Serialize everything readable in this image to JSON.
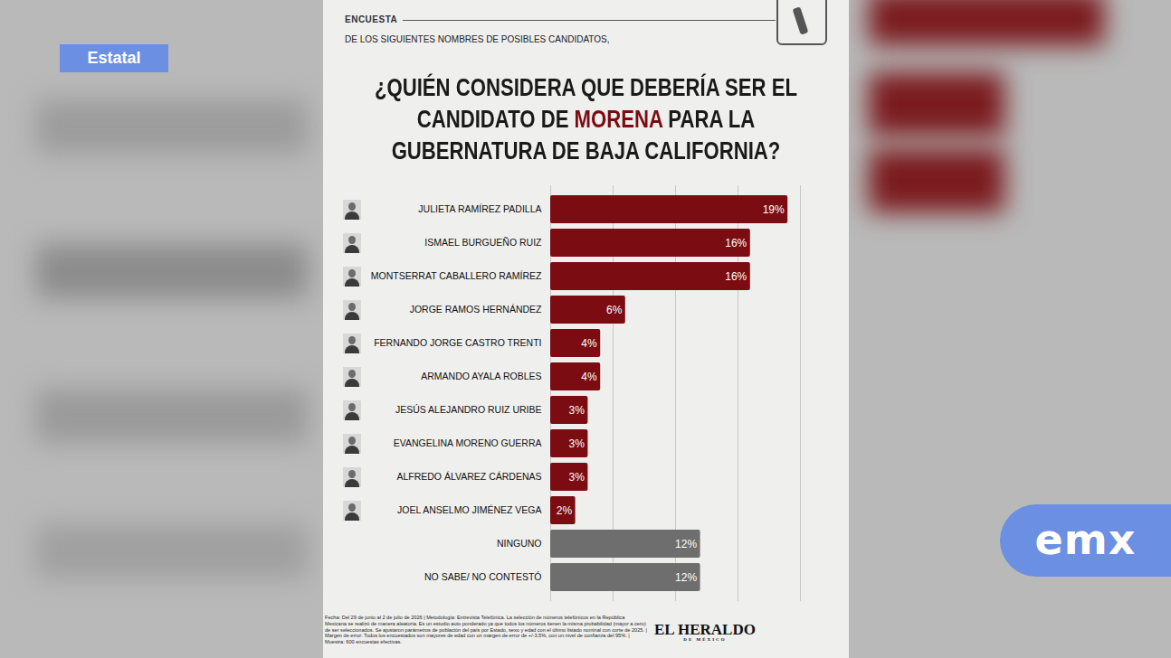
{
  "badge": "Estatal",
  "logo": "emx",
  "publisher": "EL HERALDO",
  "publisher_sub": "DE MÉXICO",
  "chart_data": {
    "type": "bar",
    "orientation": "horizontal",
    "kicker": "ENCUESTA",
    "subtitle": "DE LOS SIGUIENTES NOMBRES DE POSIBLES CANDIDATOS,",
    "title": "¿QUIÉN CONSIDERA QUE DEBERÍA SER EL CANDIDATO DE MORENA PARA LA GUBERNATURA DE BAJA CALIFORNIA?",
    "title_highlight": "MORENA",
    "categories": [
      "JULIETA RAMÍREZ PADILLA",
      "ISMAEL BURGUEÑO RUIZ",
      "MONTSERRAT CABALLERO RAMÍREZ",
      "JORGE RAMOS HERNÁNDEZ",
      "FERNANDO JORGE CASTRO TRENTI",
      "ARMANDO AYALA ROBLES",
      "JESÚS ALEJANDRO RUIZ URIBE",
      "EVANGELINA MORENO GUERRA",
      "ALFREDO ÁLVAREZ CÁRDENAS",
      "JOEL ANSELMO JIMÉNEZ VEGA",
      "NINGUNO",
      "NO SABE/ NO CONTESTÓ"
    ],
    "values": [
      19,
      16,
      16,
      6,
      4,
      4,
      3,
      3,
      3,
      2,
      12,
      12
    ],
    "value_labels": [
      "19%",
      "16%",
      "16%",
      "6%",
      "4%",
      "4%",
      "3%",
      "3%",
      "3%",
      "2%",
      "12%",
      "12%"
    ],
    "colors": [
      "#7b0c12",
      "#7b0c12",
      "#7b0c12",
      "#7b0c12",
      "#7b0c12",
      "#7b0c12",
      "#7b0c12",
      "#7b0c12",
      "#7b0c12",
      "#7b0c12",
      "#6e6e6e",
      "#6e6e6e"
    ],
    "xlim": [
      0,
      20
    ],
    "xticks": [
      0,
      5,
      10,
      15,
      20
    ],
    "grid": true,
    "data_labels": true,
    "tick_labels": "y",
    "note": "Fecha: Del 29 de junio al 2 de julio de 2026 | Metodología: Entrevista Telefónica. La selección de números telefónicos en la República Mexicana se realizó de manera aleatoria. Es un estudio auto ponderado ya que todos los números tienen la misma probabilidad (mayor a cero) de ser seleccionados. Se ajustaron parámetros de población del país por Estado, sexo y edad con el último listado nominal con corte de 2025. | Margen de error: Todos los encuestados son mayores de edad con un margen de error de +/-3.5%, con un nivel de confianza del 95%. | Muestra: 600 encuestas efectivas."
  }
}
